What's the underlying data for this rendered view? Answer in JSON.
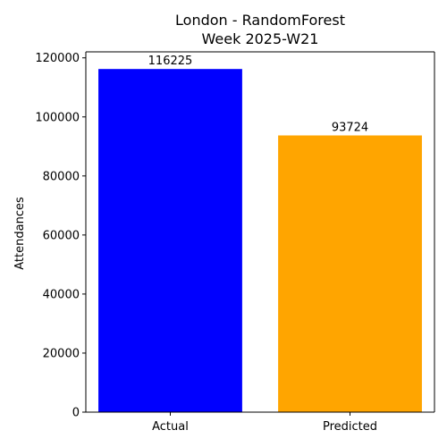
{
  "chart_data": {
    "type": "bar",
    "title": [
      "London - RandomForest",
      "Week 2025-W21"
    ],
    "xlabel": "",
    "ylabel": "Attendances",
    "categories": [
      "Actual",
      "Predicted"
    ],
    "values": [
      116225,
      93724
    ],
    "bar_labels": [
      "116225",
      "93724"
    ],
    "colors": [
      "#0000ff",
      "#ffa500"
    ],
    "ylim": [
      0,
      122036
    ],
    "yticks": [
      0,
      20000,
      40000,
      60000,
      80000,
      100000,
      120000
    ],
    "grid": false,
    "legend": "none"
  }
}
